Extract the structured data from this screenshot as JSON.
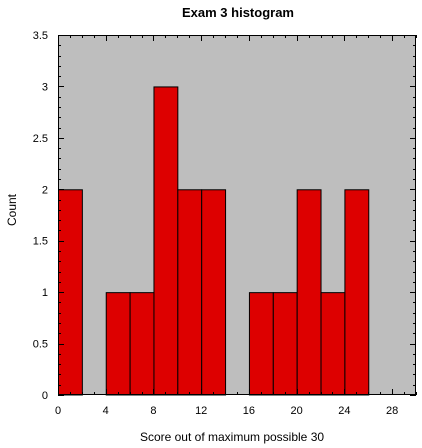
{
  "chart_data": {
    "type": "bar",
    "title": "Exam 3 histogram",
    "xlabel": "Score out of maximum possible 30",
    "ylabel": "Count",
    "bin_width": 2,
    "bins": [
      {
        "x0": 0,
        "x1": 2,
        "count": 2
      },
      {
        "x0": 2,
        "x1": 4,
        "count": 0
      },
      {
        "x0": 4,
        "x1": 6,
        "count": 1
      },
      {
        "x0": 6,
        "x1": 8,
        "count": 1
      },
      {
        "x0": 8,
        "x1": 10,
        "count": 3
      },
      {
        "x0": 10,
        "x1": 12,
        "count": 2
      },
      {
        "x0": 12,
        "x1": 14,
        "count": 2
      },
      {
        "x0": 14,
        "x1": 16,
        "count": 0
      },
      {
        "x0": 16,
        "x1": 18,
        "count": 1
      },
      {
        "x0": 18,
        "x1": 20,
        "count": 1
      },
      {
        "x0": 20,
        "x1": 22,
        "count": 2
      },
      {
        "x0": 22,
        "x1": 24,
        "count": 1
      },
      {
        "x0": 24,
        "x1": 26,
        "count": 2
      }
    ],
    "xlim": [
      0,
      30
    ],
    "ylim": [
      0,
      3.5
    ],
    "x_ticks": [
      0,
      4,
      8,
      12,
      16,
      20,
      24,
      28
    ],
    "x_tick_labels": [
      "0",
      "4",
      "8",
      "12",
      "16",
      "20",
      "24",
      "28"
    ],
    "y_ticks": [
      0,
      0.5,
      1,
      1.5,
      2,
      2.5,
      3,
      3.5
    ],
    "y_tick_labels": [
      "0",
      "0.5",
      "1",
      "1.5",
      "2",
      "2.5",
      "3",
      "3.5"
    ],
    "grid": false,
    "colors": {
      "bar_fill": "#dd0000",
      "bar_stroke": "#000000",
      "plot_background": "#bebebe",
      "page_background": "#ffffff"
    }
  }
}
